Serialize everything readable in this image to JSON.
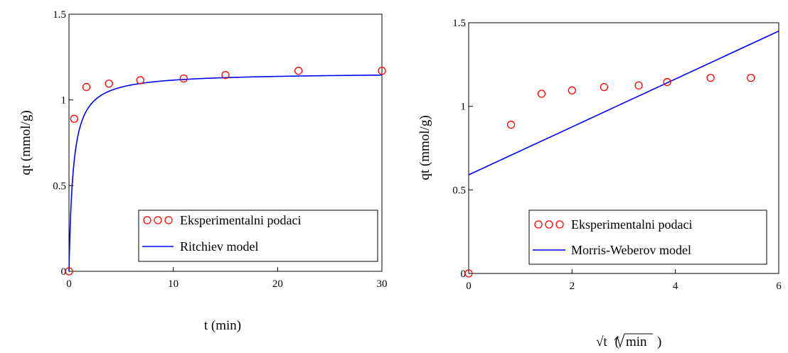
{
  "chart_data": [
    {
      "type": "scatter",
      "title": "",
      "xlabel": "t (min)",
      "ylabel": "qt (mmol/g)",
      "xlim": [
        0,
        30
      ],
      "ylim": [
        0,
        1.5
      ],
      "x_ticks": [
        "0",
        "10",
        "20",
        "30"
      ],
      "y_ticks": [
        "0",
        "0.5",
        "1",
        "1.5"
      ],
      "grid": false,
      "legend_position": "bottom-right",
      "series": [
        {
          "name": "Eksperimentalni podaci",
          "kind": "markers",
          "marker": "circle",
          "color": "#ff0000",
          "x": [
            0,
            0.5,
            1.67,
            3.83,
            6.83,
            11,
            15,
            22,
            30
          ],
          "y": [
            0,
            0.89,
            1.075,
            1.095,
            1.115,
            1.125,
            1.145,
            1.17,
            1.17
          ]
        },
        {
          "name": "Ritchiev model",
          "kind": "line",
          "color": "#0000ff",
          "model": {
            "qe": 1.16,
            "k": 2.5
          }
        }
      ]
    },
    {
      "type": "scatter",
      "title": "",
      "xlabel": "√t",
      "xlabel_unit": "min",
      "ylabel": "qt (mmol/g)",
      "xlim": [
        0,
        6
      ],
      "ylim": [
        0,
        1.5
      ],
      "x_ticks": [
        "0",
        "2",
        "4",
        "6"
      ],
      "y_ticks": [
        "0",
        "0.5",
        "1",
        "1.5"
      ],
      "grid": false,
      "legend_position": "bottom-right",
      "series": [
        {
          "name": "Eksperimentalni podaci",
          "kind": "markers",
          "marker": "circle",
          "color": "#ff0000",
          "x": [
            0,
            0.82,
            1.41,
            2.0,
            2.62,
            3.29,
            3.84,
            4.68,
            5.46
          ],
          "y": [
            0,
            0.89,
            1.075,
            1.095,
            1.115,
            1.125,
            1.145,
            1.17,
            1.17
          ]
        },
        {
          "name": "Morris-Weberov model",
          "kind": "line",
          "color": "#0000ff",
          "x": [
            0,
            6
          ],
          "y": [
            0.59,
            1.45
          ]
        }
      ]
    }
  ]
}
